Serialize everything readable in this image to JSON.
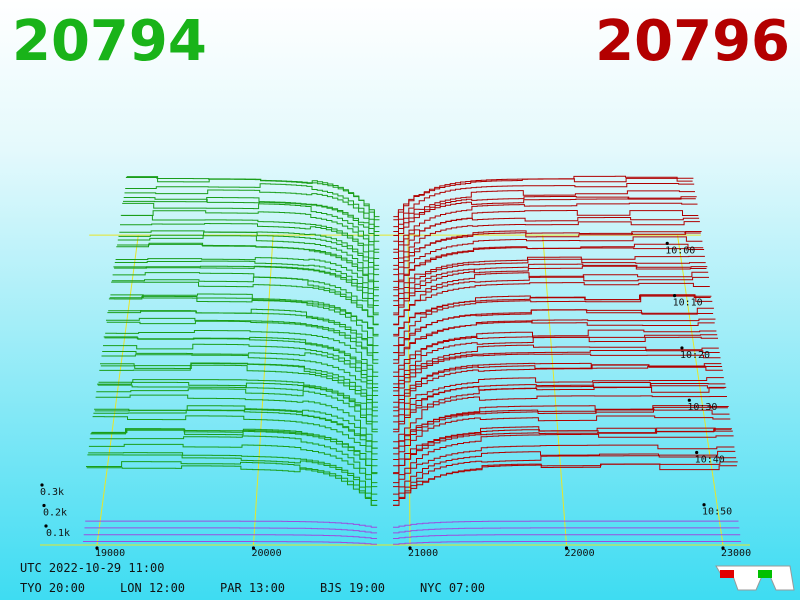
{
  "header": {
    "bid": "20794",
    "ask": "20796"
  },
  "price_ticks": [
    "19000",
    "20000",
    "21000",
    "22000",
    "23000"
  ],
  "time_ticks": [
    "10:00",
    "10:10",
    "10:20",
    "10:30",
    "10:40",
    "10:50"
  ],
  "depth_ticks": [
    "0.3k",
    "0.2k",
    "0.1k"
  ],
  "footer": {
    "utc": "UTC 2022-10-29 11:00",
    "clocks": [
      "TYO 20:00",
      "LON 12:00",
      "PAR 13:00",
      "BJS 19:00",
      "NYC 07:00"
    ]
  }
}
